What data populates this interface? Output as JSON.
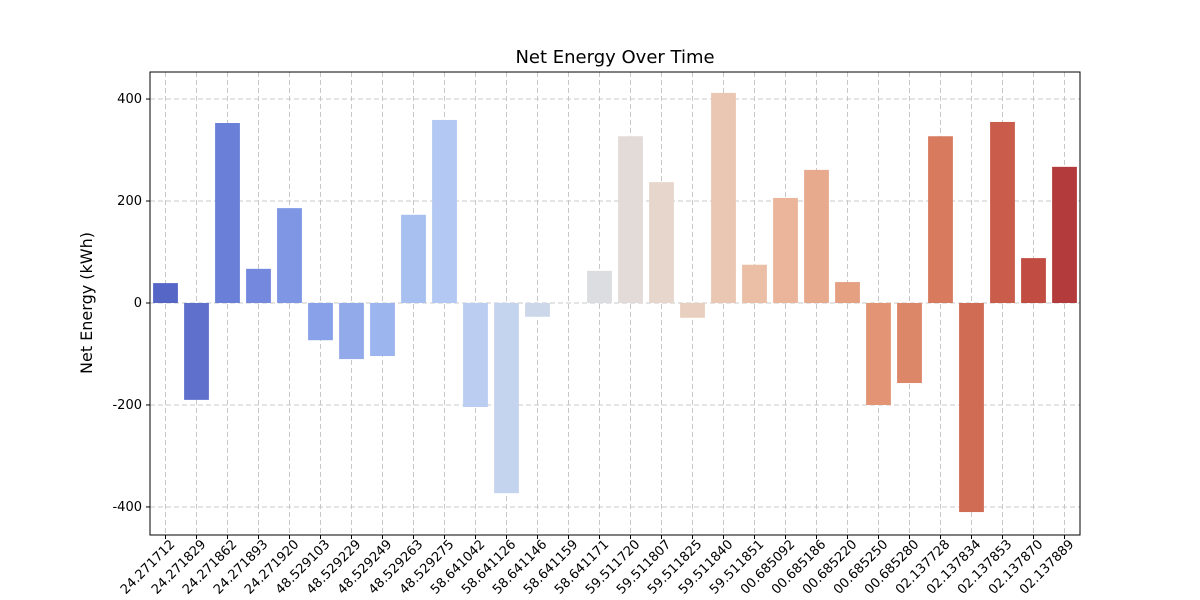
{
  "chart_data": {
    "type": "bar",
    "title": "Net Energy Over Time",
    "ylabel": "Net Energy (kWh)",
    "categories": [
      "24.271712",
      "24.271829",
      "24.271862",
      "24.271893",
      "24.271920",
      "48.529103",
      "48.529229",
      "48.529249",
      "48.529263",
      "48.529275",
      "58.641042",
      "58.641126",
      "58.641146",
      "58.641159",
      "58.641171",
      "59.511720",
      "59.511807",
      "59.511825",
      "59.511840",
      "59.511851",
      "00.685092",
      "00.685186",
      "00.685220",
      "00.685250",
      "00.685280",
      "02.137728",
      "02.137834",
      "02.137853",
      "02.137870",
      "02.137889"
    ],
    "values": [
      39,
      -190,
      353,
      67,
      186,
      -73,
      -110,
      -104,
      173,
      359,
      -204,
      -373,
      -27,
      0,
      63,
      327,
      237,
      -29,
      412,
      75,
      206,
      261,
      41,
      -200,
      -157,
      327,
      -410,
      355,
      88,
      267
    ],
    "colors": [
      "#5566c6",
      "#5f70cc",
      "#6a7fd8",
      "#7489de",
      "#7e96e4",
      "#88a1e8",
      "#93aaea",
      "#9db5ee",
      "#a8c0f0",
      "#b3c8f2",
      "#bbcef1",
      "#c5d4ee",
      "#cdd7ea",
      "#d5dbe6",
      "#dcdde0",
      "#e2dbd8",
      "#e6d6cc",
      "#e9cfbf",
      "#eac7b3",
      "#eabfa6",
      "#eab59a",
      "#e8aa8d",
      "#e59f81",
      "#e29474",
      "#dd8769",
      "#d77a5e",
      "#d06c54",
      "#c95c4a",
      "#c04c42",
      "#b43b3b"
    ],
    "ylim": [
      -455,
      453
    ],
    "yticks": [
      -400,
      -200,
      0,
      200,
      400
    ],
    "grid": true
  }
}
